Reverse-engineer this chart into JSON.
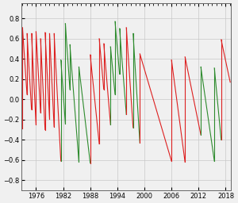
{
  "title": "",
  "xlim": [
    1972.8,
    2019.2
  ],
  "ylim": [
    -0.9,
    0.95
  ],
  "xticks": [
    1976,
    1982,
    1988,
    1994,
    2000,
    2006,
    2012,
    2018
  ],
  "yticks": [
    -0.8,
    -0.6,
    -0.4,
    -0.2,
    0.0,
    0.2,
    0.4,
    0.6,
    0.8
  ],
  "grid_color": "#c8c8c8",
  "line_color_green": "#2e8b2e",
  "line_color_red": "#dd2020",
  "bg_color": "#f0f0f0",
  "figsize": [
    3.0,
    2.56
  ],
  "dpi": 100,
  "leap_seconds": [
    [
      1972.4986,
      false
    ],
    [
      1972.9986,
      true
    ],
    [
      1973.9986,
      true
    ],
    [
      1974.9986,
      true
    ],
    [
      1975.9986,
      true
    ],
    [
      1976.9986,
      true
    ],
    [
      1977.9986,
      true
    ],
    [
      1978.9986,
      true
    ],
    [
      1979.9986,
      true
    ],
    [
      1981.4959,
      false
    ],
    [
      1982.4959,
      false
    ],
    [
      1983.4959,
      false
    ],
    [
      1985.4959,
      false
    ],
    [
      1987.9986,
      true
    ],
    [
      1989.9986,
      true
    ],
    [
      1990.9986,
      true
    ],
    [
      1992.4959,
      false
    ],
    [
      1993.4959,
      false
    ],
    [
      1994.4959,
      false
    ],
    [
      1995.9986,
      true
    ],
    [
      1997.4959,
      false
    ],
    [
      1998.9986,
      true
    ],
    [
      2005.9986,
      true
    ],
    [
      2008.9986,
      true
    ],
    [
      2012.4959,
      false
    ],
    [
      2015.4959,
      false
    ],
    [
      2016.9986,
      true
    ]
  ],
  "segments": [
    {
      "t0": 1972.4986,
      "t1": 1972.9986,
      "v0": 0.41,
      "v1": -0.29,
      "red_seg": false,
      "red_jump": true
    },
    {
      "t0": 1972.9986,
      "t1": 1973.9986,
      "v0": 0.71,
      "v1": 0.05,
      "red_seg": true,
      "red_jump": true
    },
    {
      "t0": 1973.9986,
      "t1": 1974.9986,
      "v0": 0.65,
      "v1": -0.1,
      "red_seg": true,
      "red_jump": true
    },
    {
      "t0": 1974.9986,
      "t1": 1975.9986,
      "v0": 0.65,
      "v1": -0.25,
      "red_seg": true,
      "red_jump": true
    },
    {
      "t0": 1975.9986,
      "t1": 1976.9986,
      "v0": 0.67,
      "v1": -0.13,
      "red_seg": true,
      "red_jump": true
    },
    {
      "t0": 1976.9986,
      "t1": 1977.9986,
      "v0": 0.6,
      "v1": -0.3,
      "red_seg": true,
      "red_jump": true
    },
    {
      "t0": 1977.9986,
      "t1": 1978.9986,
      "v0": 0.66,
      "v1": -0.19,
      "red_seg": true,
      "red_jump": true
    },
    {
      "t0": 1978.9986,
      "t1": 1979.9986,
      "v0": 0.65,
      "v1": -0.27,
      "red_seg": true,
      "red_jump": true
    },
    {
      "t0": 1979.9986,
      "t1": 1981.4959,
      "v0": 0.65,
      "v1": -0.61,
      "red_seg": true,
      "red_jump": false
    },
    {
      "t0": 1981.4959,
      "t1": 1982.4959,
      "v0": 0.39,
      "v1": -0.24,
      "red_seg": false,
      "red_jump": false
    },
    {
      "t0": 1982.4959,
      "t1": 1983.4959,
      "v0": 0.75,
      "v1": 0.1,
      "red_seg": false,
      "red_jump": false
    },
    {
      "t0": 1983.4959,
      "t1": 1985.4959,
      "v0": 0.54,
      "v1": -0.62,
      "red_seg": false,
      "red_jump": false
    },
    {
      "t0": 1985.4959,
      "t1": 1987.9986,
      "v0": 0.32,
      "v1": -0.63,
      "red_seg": false,
      "red_jump": true
    },
    {
      "t0": 1987.9986,
      "t1": 1989.9986,
      "v0": 0.44,
      "v1": -0.44,
      "red_seg": true,
      "red_jump": true
    },
    {
      "t0": 1989.9986,
      "t1": 1990.9986,
      "v0": 0.6,
      "v1": 0.1,
      "red_seg": true,
      "red_jump": true
    },
    {
      "t0": 1990.9986,
      "t1": 1992.4959,
      "v0": 0.55,
      "v1": -0.25,
      "red_seg": true,
      "red_jump": false
    },
    {
      "t0": 1992.4959,
      "t1": 1993.4959,
      "v0": 0.52,
      "v1": 0.05,
      "red_seg": false,
      "red_jump": false
    },
    {
      "t0": 1993.4959,
      "t1": 1994.4959,
      "v0": 0.77,
      "v1": 0.25,
      "red_seg": false,
      "red_jump": false
    },
    {
      "t0": 1994.4959,
      "t1": 1995.9986,
      "v0": 0.7,
      "v1": -0.15,
      "red_seg": false,
      "red_jump": true
    },
    {
      "t0": 1995.9986,
      "t1": 1997.4959,
      "v0": 0.71,
      "v1": -0.28,
      "red_seg": true,
      "red_jump": false
    },
    {
      "t0": 1997.4959,
      "t1": 1998.9986,
      "v0": 0.65,
      "v1": -0.43,
      "red_seg": false,
      "red_jump": true
    },
    {
      "t0": 1998.9986,
      "t1": 2005.9986,
      "v0": 0.45,
      "v1": -0.61,
      "red_seg": true,
      "red_jump": true
    },
    {
      "t0": 2005.9986,
      "t1": 2008.9986,
      "v0": 0.39,
      "v1": -0.62,
      "red_seg": true,
      "red_jump": true
    },
    {
      "t0": 2008.9986,
      "t1": 2012.4959,
      "v0": 0.42,
      "v1": -0.35,
      "red_seg": true,
      "red_jump": false
    },
    {
      "t0": 2012.4959,
      "t1": 2015.4959,
      "v0": 0.32,
      "v1": -0.61,
      "red_seg": false,
      "red_jump": false
    },
    {
      "t0": 2015.4959,
      "t1": 2016.9986,
      "v0": 0.31,
      "v1": -0.4,
      "red_seg": false,
      "red_jump": true
    },
    {
      "t0": 2016.9986,
      "t1": 2019.0,
      "v0": 0.59,
      "v1": 0.17,
      "red_seg": true,
      "red_jump": false
    }
  ]
}
